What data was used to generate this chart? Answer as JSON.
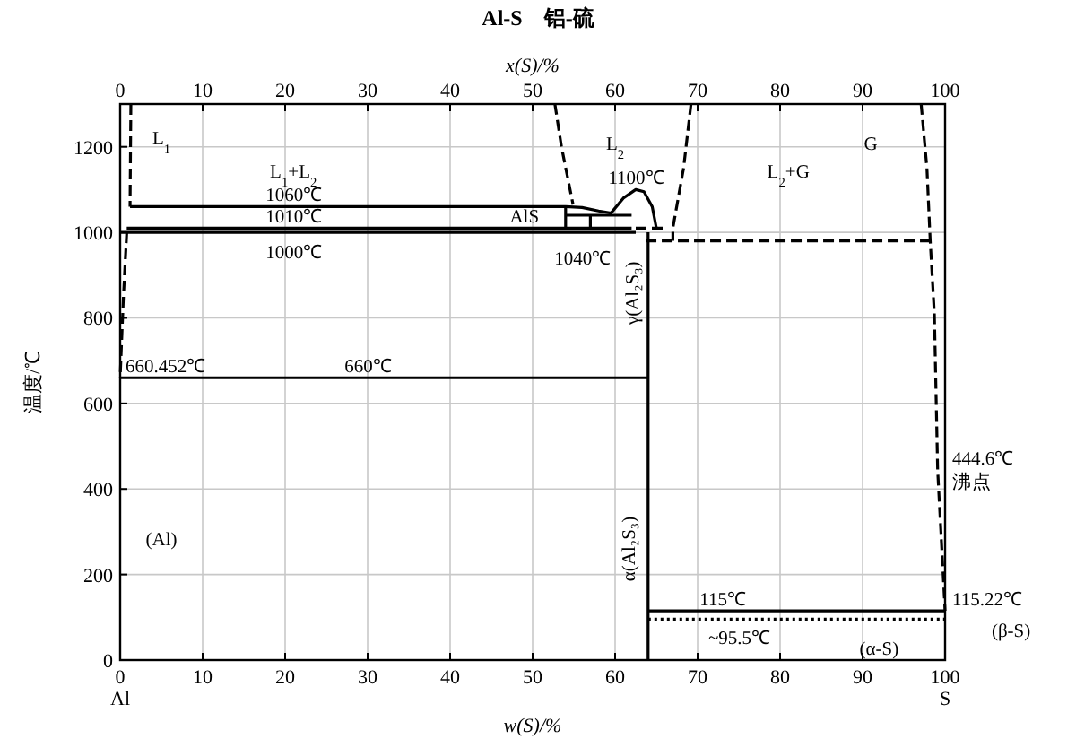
{
  "chart_data": {
    "type": "line",
    "title": "Al-S　铝-硫",
    "xlabel": "w(S)/%",
    "x2label": "x(S)/%",
    "ylabel": "温度/℃",
    "xlim": [
      0,
      100
    ],
    "xticks": [
      {
        "value": 0,
        "label": "0\nAl"
      },
      10,
      20,
      30,
      40,
      50,
      60,
      70,
      80,
      90,
      {
        "value": 100,
        "label": "100\nS"
      }
    ],
    "x2lim": [
      0,
      100
    ],
    "x2ticks": [
      0,
      10,
      20,
      30,
      40,
      50,
      60,
      70,
      80,
      90,
      100
    ],
    "ylim": [
      0,
      1300
    ],
    "yticks": [
      0,
      200,
      400,
      600,
      800,
      1000,
      1200
    ],
    "grid": true,
    "series": [
      {
        "color": "#000000",
        "line_style": "dashed",
        "x": [
          1.3,
          1.2
        ],
        "values": [
          1300,
          1060
        ]
      },
      {
        "color": "#000000",
        "line_style": "dashed",
        "x": [
          0.8,
          0.4,
          0
        ],
        "values": [
          1000,
          850,
          660.452
        ]
      },
      {
        "color": "#000000",
        "line_style": "solid",
        "x": [
          1.2,
          54,
          56,
          58,
          59.5,
          61,
          62.5,
          63.5,
          64.5,
          65
        ],
        "values": [
          1060,
          1060,
          1058,
          1050,
          1045,
          1080,
          1100,
          1095,
          1060,
          1010
        ]
      },
      {
        "color": "#000000",
        "line_style": "solid",
        "x": [
          0.8,
          62
        ],
        "values": [
          1010,
          1010
        ]
      },
      {
        "color": "#000000",
        "line_style": "solid",
        "x": [
          0,
          62.5
        ],
        "values": [
          1000,
          1000
        ]
      },
      {
        "color": "#000000",
        "line_style": "solid",
        "x": [
          54,
          54
        ],
        "values": [
          1010,
          1060
        ]
      },
      {
        "color": "#000000",
        "line_style": "solid",
        "x": [
          54,
          62
        ],
        "values": [
          1040,
          1040
        ]
      },
      {
        "color": "#000000",
        "line_style": "solid",
        "x": [
          57,
          57
        ],
        "values": [
          1010,
          1040
        ]
      },
      {
        "color": "#000000",
        "line_style": "solid",
        "x": [
          64,
          64
        ],
        "values": [
          1000,
          0
        ]
      },
      {
        "color": "#000000",
        "line_style": "solid",
        "x": [
          0,
          64
        ],
        "values": [
          660,
          660
        ]
      },
      {
        "color": "#000000",
        "line_style": "dashed",
        "x": [
          52.7,
          53.5,
          54.9
        ],
        "values": [
          1300,
          1200,
          1065
        ]
      },
      {
        "color": "#000000",
        "line_style": "dashed",
        "x": [
          69.2,
          68.3,
          67,
          67
        ],
        "values": [
          1300,
          1150,
          1010,
          980
        ]
      },
      {
        "color": "#000000",
        "line_style": "dashed",
        "x": [
          62.5,
          66
        ],
        "values": [
          1010,
          1010
        ]
      },
      {
        "color": "#000000",
        "line_style": "dashed",
        "x": [
          63.7,
          98.2
        ],
        "values": [
          980,
          980
        ]
      },
      {
        "color": "#000000",
        "line_style": "dashed",
        "x": [
          97.1,
          97.8,
          98.2,
          98.7,
          99.1,
          100
        ],
        "values": [
          1300,
          1150,
          980,
          809,
          444.6,
          115.22
        ]
      },
      {
        "color": "#000000",
        "line_style": "solid",
        "x": [
          64,
          100
        ],
        "values": [
          115,
          115
        ]
      },
      {
        "color": "#000000",
        "line_style": "dotted",
        "x": [
          64,
          100
        ],
        "values": [
          95.5,
          95.5
        ]
      }
    ],
    "annotations": [
      "L$_{1}$",
      "L$_{1}$+L$_{2}$",
      "L$_{2}$",
      "G",
      "L$_{2}$+G",
      {
        "text": "1060℃",
        "x": 21,
        "y": 1060
      },
      {
        "text": "1010℃",
        "x": 21,
        "y": 1010
      },
      "1000℃",
      {
        "text": "AlS",
        "x": 49,
        "y": 1010
      },
      {
        "text": "1100℃",
        "x": 62.5,
        "y": 1100
      },
      "1040℃",
      "γ(Al₂S₃)",
      {
        "text": "660.452℃",
        "x": 0,
        "y": 660.452
      },
      {
        "text": "660℃",
        "x": 30,
        "y": 660
      },
      "(Al)",
      "α(Al₂S₃)",
      {
        "text": "115℃",
        "x": 73,
        "y": 115
      },
      "~95.5℃",
      {
        "text": "444.6℃\n沸点",
        "x": 100,
        "y": 444.6
      },
      {
        "text": "115.22℃",
        "x": 100,
        "y": 115.22
      },
      "(β-S)",
      "(α-S)"
    ]
  }
}
